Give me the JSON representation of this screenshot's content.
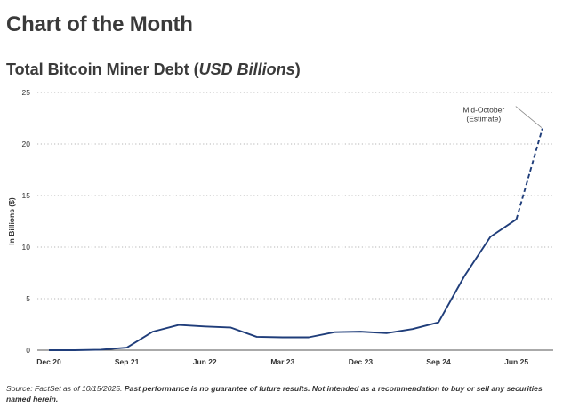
{
  "header": {
    "title": "Chart of the Month"
  },
  "chart_data": {
    "type": "line",
    "title": "Total Bitcoin Miner Debt",
    "title_unit": "USD Billions",
    "ylabel": "In Billions ($)",
    "xlabel": "",
    "ylim": [
      0,
      25
    ],
    "yticks": [
      0,
      5,
      10,
      15,
      20,
      25
    ],
    "x_tick_labels": [
      "Dec 20",
      "Sep 21",
      "Jun 22",
      "Mar 23",
      "Dec 23",
      "Sep 24",
      "Jun 25"
    ],
    "grid": "horizontal dotted",
    "x": [
      "Dec 20",
      "Mar 21",
      "Jun 21",
      "Sep 21",
      "Dec 21",
      "Mar 22",
      "Jun 22",
      "Sep 22",
      "Dec 22",
      "Mar 23",
      "Jun 23",
      "Sep 23",
      "Dec 23",
      "Mar 24",
      "Jun 24",
      "Sep 24",
      "Dec 24",
      "Mar 25",
      "Jun 25",
      "Mid-Oct 25"
    ],
    "series": [
      {
        "values": [
          0.0,
          0.0,
          0.05,
          0.25,
          1.8,
          2.45,
          2.3,
          2.2,
          1.3,
          1.25,
          1.25,
          1.75,
          1.8,
          1.65,
          2.05,
          2.7,
          7.2,
          11.0,
          12.7,
          21.5
        ],
        "estimate_from_index": 18,
        "color": "#1f3d7a"
      }
    ],
    "annotations": [
      {
        "line1": "Mid-October",
        "line2": "(Estimate)"
      }
    ]
  },
  "footnote": {
    "source": "Source: FactSet as of 10/15/2025.",
    "disclaimer": "Past performance is no guarantee of future results. Not intended as a recommendation to buy or sell any securities named herein."
  }
}
